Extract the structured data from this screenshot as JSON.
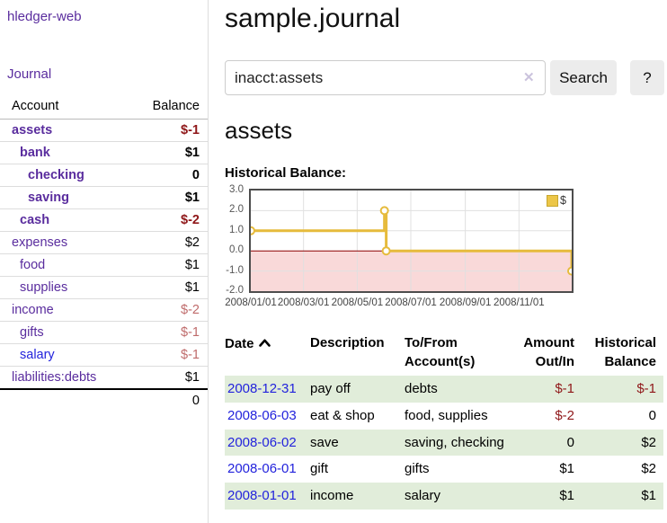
{
  "app": {
    "brand": "hledger-web",
    "nav_journal": "Journal"
  },
  "sidebar": {
    "headers": {
      "account": "Account",
      "balance": "Balance"
    },
    "accounts": [
      {
        "name": "assets",
        "balance": "$-1"
      },
      {
        "name": "bank",
        "balance": "$1"
      },
      {
        "name": "checking",
        "balance": "0"
      },
      {
        "name": "saving",
        "balance": "$1"
      },
      {
        "name": "cash",
        "balance": "$-2"
      },
      {
        "name": "expenses",
        "balance": "$2"
      },
      {
        "name": "food",
        "balance": "$1"
      },
      {
        "name": "supplies",
        "balance": "$1"
      },
      {
        "name": "income",
        "balance": "$-2"
      },
      {
        "name": "gifts",
        "balance": "$-1"
      },
      {
        "name": "salary",
        "balance": "$-1"
      },
      {
        "name": "liabilities:debts",
        "balance": "$1"
      }
    ],
    "total": "0"
  },
  "main": {
    "title": "sample.journal",
    "search": {
      "value": "inacct:assets",
      "clear": "✕",
      "submit": "Search",
      "help": "?"
    },
    "account_title": "assets",
    "chart_title": "Historical Balance:"
  },
  "chart_data": {
    "type": "line",
    "step": true,
    "title": "Historical Balance",
    "legend": [
      {
        "label": "$",
        "color": "#ecc648"
      }
    ],
    "series": [
      {
        "name": "$",
        "points": [
          {
            "x": "2008-01-01",
            "y": 1
          },
          {
            "x": "2008-06-01",
            "y": 2
          },
          {
            "x": "2008-06-03",
            "y": 0
          },
          {
            "x": "2008-12-31",
            "y": -1
          }
        ]
      }
    ],
    "x_range": [
      "2008-01-01",
      "2008-12-31"
    ],
    "ylim": [
      -2,
      3
    ],
    "y_ticks": [
      "3.0",
      "2.0",
      "1.0",
      "0.0",
      "-1.0",
      "-2.0"
    ],
    "x_ticks": [
      {
        "date": "2008-01-01",
        "label": "2008/01/01"
      },
      {
        "date": "2008-03-01",
        "label": "2008/03/01"
      },
      {
        "date": "2008-05-01",
        "label": "2008/05/01"
      },
      {
        "date": "2008-07-01",
        "label": "2008/07/01"
      },
      {
        "date": "2008-09-01",
        "label": "2008/09/01"
      },
      {
        "date": "2008-11-01",
        "label": "2008/11/01"
      }
    ],
    "grid": true,
    "legend_position": "top-right",
    "line_color": "#e6bb3c",
    "negative_fill": "#f9d9d9",
    "zero_line_color": "#8b0000"
  },
  "transactions": {
    "headers": {
      "date": "Date",
      "description": "Description",
      "accounts": "To/From Account(s)",
      "amount": "Amount Out/In",
      "balance": "Historical Balance"
    },
    "rows": [
      {
        "date": "2008-12-31",
        "description": "pay off",
        "accounts": "debts",
        "amount": "$-1",
        "balance": "$-1"
      },
      {
        "date": "2008-06-03",
        "description": "eat & shop",
        "accounts": "food, supplies",
        "amount": "$-2",
        "balance": "0"
      },
      {
        "date": "2008-06-02",
        "description": "save",
        "accounts": "saving, checking",
        "amount": "0",
        "balance": "$2"
      },
      {
        "date": "2008-06-01",
        "description": "gift",
        "accounts": "gifts",
        "amount": "$1",
        "balance": "$2"
      },
      {
        "date": "2008-01-01",
        "description": "income",
        "accounts": "salary",
        "amount": "$1",
        "balance": "$1"
      }
    ]
  }
}
